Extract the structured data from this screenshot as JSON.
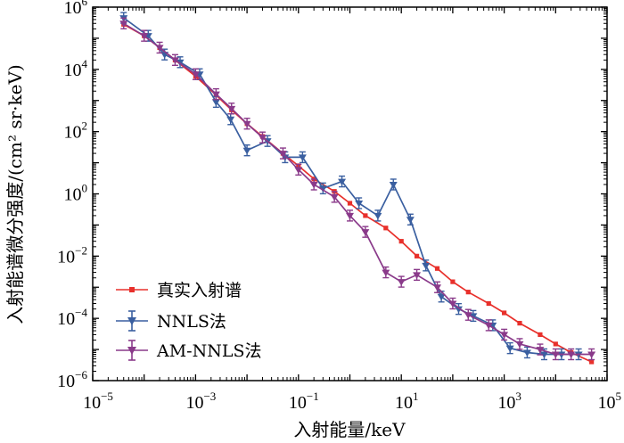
{
  "chart_data": {
    "type": "line",
    "title": "",
    "xlabel": "入射能量/keV",
    "ylabel": "入射能谱微分强度/(cm² sr·keV)",
    "xscale": "log",
    "yscale": "log",
    "xlim": [
      1e-05,
      100000
    ],
    "ylim": [
      1e-06,
      1000000
    ],
    "x_tick_labels": [
      {
        "base": "10",
        "exp": "−5"
      },
      {
        "base": "10",
        "exp": "−3"
      },
      {
        "base": "10",
        "exp": "−1"
      },
      {
        "base": "10",
        "exp": "1"
      },
      {
        "base": "10",
        "exp": "3"
      },
      {
        "base": "10",
        "exp": "5"
      }
    ],
    "y_tick_labels": [
      {
        "base": "10",
        "exp": "−6"
      },
      {
        "base": "10",
        "exp": "−4"
      },
      {
        "base": "10",
        "exp": "−2"
      },
      {
        "base": "10",
        "exp": "0"
      },
      {
        "base": "10",
        "exp": "2"
      },
      {
        "base": "10",
        "exp": "4"
      },
      {
        "base": "10",
        "exp": "6"
      }
    ],
    "legend_position": "lower-left",
    "series": [
      {
        "name": "真实入射谱",
        "color": "#e8302b",
        "marker": "square",
        "x": [
          4e-05,
          0.0001,
          0.0002,
          0.0004,
          0.001,
          0.0025,
          0.005,
          0.01,
          0.02,
          0.05,
          0.1,
          0.2,
          0.5,
          1,
          2,
          5,
          10,
          20,
          50,
          100,
          200,
          500,
          1000,
          2000,
          5000,
          10000,
          20000,
          50000
        ],
        "values": [
          280000,
          120000,
          50000,
          20000,
          6000,
          1500,
          500,
          180,
          70,
          20,
          8,
          3,
          1.2,
          0.5,
          0.2,
          0.08,
          0.03,
          0.01,
          0.004,
          0.0015,
          0.0007,
          0.0003,
          0.00015,
          7e-05,
          3e-05,
          1.5e-05,
          8e-06,
          4e-06
        ]
      },
      {
        "name": "NNLS法",
        "color": "#3a5fa0",
        "marker": "triangle-down",
        "x": [
          4e-05,
          0.00012,
          0.00025,
          0.0005,
          0.0012,
          0.0025,
          0.0048,
          0.01,
          0.025,
          0.055,
          0.12,
          0.3,
          0.7,
          1.5,
          3.5,
          7,
          15,
          30,
          60,
          130,
          250,
          600,
          1300,
          2800,
          6000,
          13000,
          28000
        ],
        "values": [
          450000,
          120000,
          30000,
          17000,
          7000,
          900,
          250,
          25,
          50,
          15,
          15,
          1.5,
          2.5,
          0.5,
          0.2,
          2,
          0.15,
          0.005,
          0.0005,
          0.0002,
          0.00012,
          6e-05,
          1.1e-05,
          8e-06,
          7e-06,
          7e-06,
          7e-06
        ]
      },
      {
        "name": "AM-NNLS法",
        "color": "#8a3a8a",
        "marker": "triangle-down",
        "x": [
          4e-05,
          0.0001,
          0.0002,
          0.0004,
          0.001,
          0.0025,
          0.005,
          0.01,
          0.02,
          0.05,
          0.1,
          0.2,
          0.5,
          1,
          2,
          5,
          10,
          20,
          50,
          100,
          200,
          500,
          1000,
          2000,
          5000,
          10000,
          20000,
          50000
        ],
        "values": [
          300000,
          120000,
          50000,
          20000,
          7000,
          1600,
          550,
          180,
          65,
          20,
          6,
          2,
          0.8,
          0.2,
          0.06,
          0.003,
          0.0015,
          0.0025,
          0.001,
          0.0003,
          0.00013,
          6e-05,
          3e-05,
          1.5e-05,
          1e-05,
          7e-06,
          7e-06,
          7e-06
        ]
      }
    ]
  }
}
